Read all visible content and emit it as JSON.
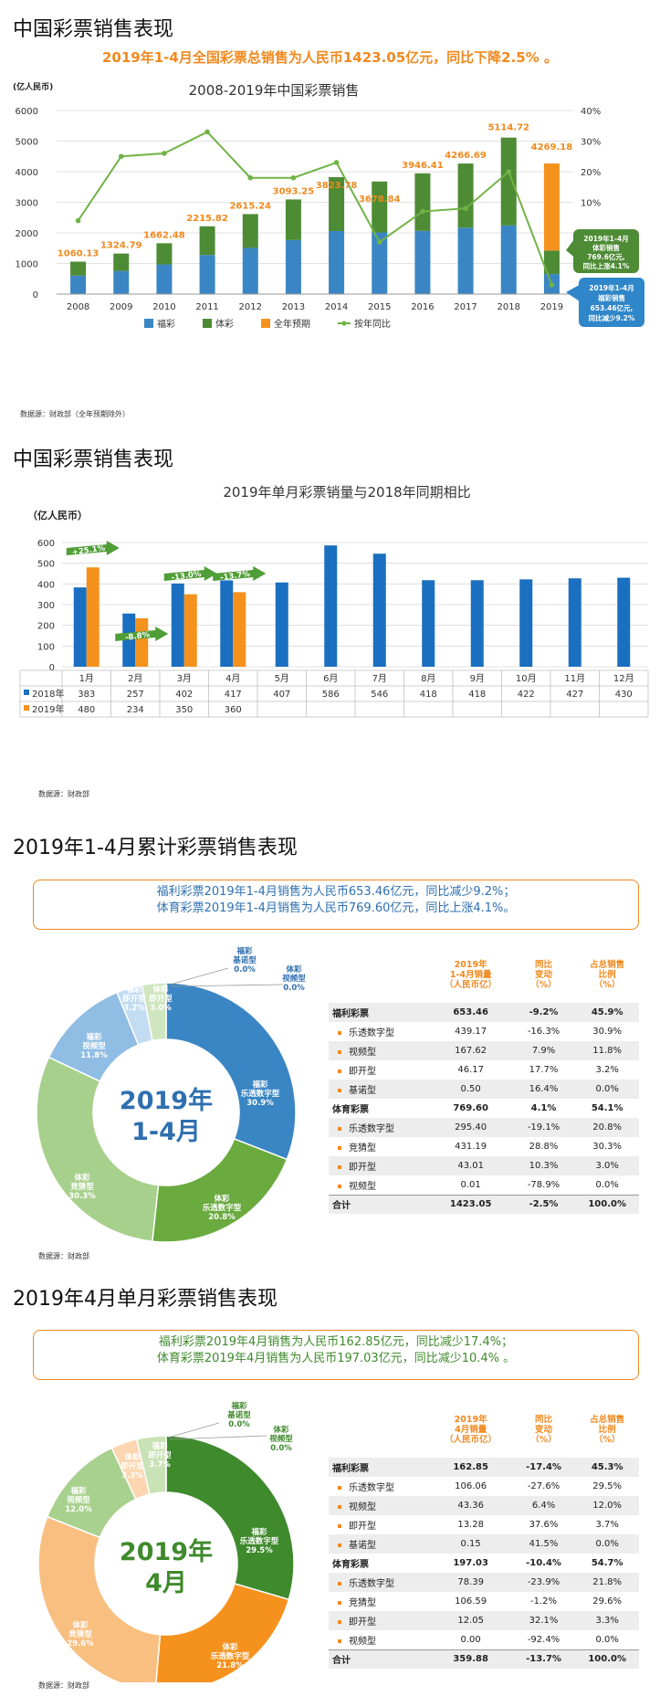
{
  "section1": {
    "title": "中国彩票销售表现",
    "headline": "2019年1-4月全国彩票总销售为人民币1423.05亿元，同比下降2.5% 。",
    "source": "数据源：财政部（全年预期除外）"
  },
  "chart1": {
    "type": "bar",
    "title": "2008-2019年中国彩票销售",
    "ylabel": "(亿人民币)",
    "categories": [
      "2008",
      "2009",
      "2010",
      "2011",
      "2012",
      "2013",
      "2014",
      "2015",
      "2016",
      "2017",
      "2018",
      "2019"
    ],
    "ylim": [
      0,
      6000
    ],
    "yticks": [
      "0",
      "1000",
      "2000",
      "3000",
      "4000",
      "5000",
      "6000"
    ],
    "y2ticks": [
      "-20%",
      "-10%",
      "0%",
      "10%",
      "20%",
      "30%",
      "40%"
    ],
    "y2lim": [
      -20,
      40
    ],
    "totals_labels": [
      "1060.13",
      "1324.79",
      "1662.48",
      "2215.82",
      "2615.24",
      "3093.25",
      "3823.78",
      "3678.84",
      "3946.41",
      "4266.69",
      "5114.72",
      "4269.18"
    ],
    "series": [
      {
        "name": "福彩",
        "color": "#3a86c4",
        "values": [
          604,
          756,
          968,
          1278,
          1510,
          1765,
          2060,
          2015,
          2065,
          2170,
          2245,
          653.46
        ]
      },
      {
        "name": "体彩",
        "color": "#4d8b34",
        "values": [
          456,
          569,
          694,
          938,
          1105,
          1328,
          1764,
          1664,
          1881,
          2097,
          2870,
          769.6
        ]
      },
      {
        "name": "全年预期",
        "color": "#f5921e",
        "values": [
          0,
          0,
          0,
          0,
          0,
          0,
          0,
          0,
          0,
          0,
          0,
          2846.12
        ]
      },
      {
        "name": "按年同比",
        "color": "#70b345",
        "axis": "right",
        "values": [
          4,
          25,
          26,
          33,
          18,
          18,
          23,
          -3,
          7,
          8,
          20,
          -17
        ]
      }
    ],
    "legend": [
      "福彩",
      "体彩",
      "全年预期",
      "按年同比"
    ],
    "callout_green": [
      "2019年1-4月",
      "体彩销售",
      "769.6亿元,",
      "同比上涨4.1%"
    ],
    "callout_blue": [
      "2019年1-4月",
      "福彩销售",
      "653.46亿元,",
      "同比减少9.2%"
    ],
    "colors": {
      "fucai": "#3a86c4",
      "ticai": "#4d8b34",
      "forecast": "#f5921e",
      "yoy": "#70b345"
    }
  },
  "section2": {
    "title": "中国彩票销售表现",
    "source": "数据源：财政部"
  },
  "chart2": {
    "type": "bar",
    "title": "2019年单月彩票销量与2018年同期相比",
    "ylabel": "（亿人民币）",
    "categories": [
      "1月",
      "2月",
      "3月",
      "4月",
      "5月",
      "6月",
      "7月",
      "8月",
      "9月",
      "10月",
      "11月",
      "12月"
    ],
    "ylim": [
      0,
      600
    ],
    "yticks": [
      "0",
      "100",
      "200",
      "300",
      "400",
      "500",
      "600"
    ],
    "series": [
      {
        "name": "2018年",
        "color": "#1a6fc0",
        "values": [
          383,
          257,
          402,
          417,
          407,
          586,
          546,
          418,
          418,
          422,
          427,
          430
        ]
      },
      {
        "name": "2019年",
        "color": "#f5921e",
        "values": [
          480,
          234,
          350,
          360,
          null,
          null,
          null,
          null,
          null,
          null,
          null,
          null
        ]
      }
    ],
    "table_rows": [
      {
        "label": "2018年",
        "values": [
          "383",
          "257",
          "402",
          "417",
          "407",
          "586",
          "546",
          "418",
          "418",
          "422",
          "427",
          "430"
        ]
      },
      {
        "label": "2019年",
        "values": [
          "480",
          "234",
          "350",
          "360",
          "",
          "",
          "",
          "",
          "",
          "",
          "",
          ""
        ]
      }
    ],
    "arrows": [
      "+25.1%",
      "-8.8%",
      "-13.0%",
      "-13.7%"
    ],
    "colors": {
      "y2018": "#1a6fc0",
      "y2019": "#f5921e",
      "arrow": "#4f9e36"
    }
  },
  "section3": {
    "title": "2019年1-4月累计彩票销售表现",
    "summary_line1": "福利彩票2019年1-4月销售为人民币653.46亿元，同比减少9.2%；",
    "summary_line2": "体育彩票2019年1-4月销售为人民币769.60亿元，同比上涨4.1%。",
    "source": "数据源：财政部",
    "donut_center_line1": "2019年",
    "donut_center_line2": "1-4月",
    "slices": [
      {
        "name": "福彩乐透数字型",
        "line1": "福彩",
        "line2": "乐透数字型",
        "pct_label": "30.9%",
        "value": 30.9,
        "color": "#3a86c4"
      },
      {
        "name": "体彩乐透数字型",
        "line1": "体彩",
        "line2": "乐透数字型",
        "pct_label": "20.8%",
        "value": 20.8,
        "color": "#6aaa3f"
      },
      {
        "name": "体彩竞猜型",
        "line1": "体彩",
        "line2": "竞猜型",
        "pct_label": "30.3%",
        "value": 30.3,
        "color": "#a8d08d"
      },
      {
        "name": "福彩视频型",
        "line1": "福彩",
        "line2": "视频型",
        "pct_label": "11.8%",
        "value": 11.8,
        "color": "#8fbde3"
      },
      {
        "name": "福彩即开型",
        "line1": "福彩",
        "line2": "即开型",
        "pct_label": "3.2%",
        "value": 3.2,
        "color": "#c3dcf1"
      },
      {
        "name": "体彩即开型",
        "line1": "体彩",
        "line2": "即开型",
        "pct_label": "3.0%",
        "value": 3.0,
        "color": "#cfe6bf"
      },
      {
        "name": "福彩基诺型",
        "line1": "福彩",
        "line2": "基诺型",
        "pct_label": "0.0%",
        "value": 0.0,
        "color": "#3a86c4"
      },
      {
        "name": "体彩视频型",
        "line1": "体彩",
        "line2": "视频型",
        "pct_label": "0.0%",
        "value": 0.0,
        "color": "#6aaa3f"
      }
    ],
    "table": {
      "headers": [
        "",
        "2019年\n1-4月销量\n（人民币亿）",
        "同比\n变动\n（%）",
        "占总销售\n比例\n（%）"
      ],
      "rows": [
        {
          "type": "group",
          "label": "福利彩票",
          "values": [
            "653.46",
            "-9.2%",
            "45.9%"
          ]
        },
        {
          "type": "item",
          "label": "乐透数字型",
          "values": [
            "439.17",
            "-16.3%",
            "30.9%"
          ]
        },
        {
          "type": "item",
          "label": "视频型",
          "values": [
            "167.62",
            "7.9%",
            "11.8%"
          ]
        },
        {
          "type": "item",
          "label": "即开型",
          "values": [
            "46.17",
            "17.7%",
            "3.2%"
          ]
        },
        {
          "type": "item",
          "label": "基诺型",
          "values": [
            "0.50",
            "16.4%",
            "0.0%"
          ]
        },
        {
          "type": "group",
          "label": "体育彩票",
          "values": [
            "769.60",
            "4.1%",
            "54.1%"
          ]
        },
        {
          "type": "item",
          "label": "乐透数字型",
          "values": [
            "295.40",
            "-19.1%",
            "20.8%"
          ]
        },
        {
          "type": "item",
          "label": "竞猜型",
          "values": [
            "431.19",
            "28.8%",
            "30.3%"
          ]
        },
        {
          "type": "item",
          "label": "即开型",
          "values": [
            "43.01",
            "10.3%",
            "3.0%"
          ]
        },
        {
          "type": "item",
          "label": "视频型",
          "values": [
            "0.01",
            "-78.9%",
            "0.0%"
          ]
        },
        {
          "type": "total",
          "label": "合计",
          "values": [
            "1423.05",
            "-2.5%",
            "100.0%"
          ]
        }
      ]
    },
    "colors": {
      "accent": "#f0891e",
      "text": "#2f6fb0",
      "center": "#2f6fb0"
    }
  },
  "section4": {
    "title": "2019年4月单月彩票销售表现",
    "summary_line1": "福利彩票2019年4月销售为人民币162.85亿元，同比减少17.4%；",
    "summary_line2": "体育彩票2019年4月销售为人民币197.03亿元，同比减少10.4% 。",
    "source": "数据源：财政部",
    "donut_center_line1": "2019年",
    "donut_center_line2": "4月",
    "slices": [
      {
        "name": "福彩乐透数字型",
        "line1": "福彩",
        "line2": "乐透数字型",
        "pct_label": "29.5%",
        "value": 29.5,
        "color": "#3f8a2c"
      },
      {
        "name": "体彩乐透数字型",
        "line1": "体彩",
        "line2": "乐透数字型",
        "pct_label": "21.8%",
        "value": 21.8,
        "color": "#f5921e"
      },
      {
        "name": "体彩竞猜型",
        "line1": "体彩",
        "line2": "竞猜型",
        "pct_label": "29.6%",
        "value": 29.6,
        "color": "#f9bf80"
      },
      {
        "name": "福彩视频型",
        "line1": "福彩",
        "line2": "视频型",
        "pct_label": "12.0%",
        "value": 12.0,
        "color": "#a9d18e"
      },
      {
        "name": "体彩即开型",
        "line1": "体彩",
        "line2": "即开型",
        "pct_label": "3.3%",
        "value": 3.3,
        "color": "#fbd6b0"
      },
      {
        "name": "福彩即开型",
        "line1": "福彩",
        "line2": "即开型",
        "pct_label": "3.7%",
        "value": 3.7,
        "color": "#c9e2b6"
      },
      {
        "name": "福彩基诺型",
        "line1": "福彩",
        "line2": "基诺型",
        "pct_label": "0.0%",
        "value": 0.0,
        "color": "#3f8a2c"
      },
      {
        "name": "体彩视频型",
        "line1": "体彩",
        "line2": "视频型",
        "pct_label": "0.0%",
        "value": 0.0,
        "color": "#f5921e"
      }
    ],
    "table": {
      "headers": [
        "",
        "2019年\n4月销量\n（人民币亿）",
        "同比\n变动\n（%）",
        "占总销售\n比例\n（%）"
      ],
      "rows": [
        {
          "type": "group",
          "label": "福利彩票",
          "values": [
            "162.85",
            "-17.4%",
            "45.3%"
          ]
        },
        {
          "type": "item",
          "label": "乐透数字型",
          "values": [
            "106.06",
            "-27.6%",
            "29.5%"
          ]
        },
        {
          "type": "item",
          "label": "视频型",
          "values": [
            "43.36",
            "6.4%",
            "12.0%"
          ]
        },
        {
          "type": "item",
          "label": "即开型",
          "values": [
            "13.28",
            "37.6%",
            "3.7%"
          ]
        },
        {
          "type": "item",
          "label": "基诺型",
          "values": [
            "0.15",
            "41.5%",
            "0.0%"
          ]
        },
        {
          "type": "group",
          "label": "体育彩票",
          "values": [
            "197.03",
            "-10.4%",
            "54.7%"
          ]
        },
        {
          "type": "item",
          "label": "乐透数字型",
          "values": [
            "78.39",
            "-23.9%",
            "21.8%"
          ]
        },
        {
          "type": "item",
          "label": "竞猜型",
          "values": [
            "106.59",
            "-1.2%",
            "29.6%"
          ]
        },
        {
          "type": "item",
          "label": "即开型",
          "values": [
            "12.05",
            "32.1%",
            "3.3%"
          ]
        },
        {
          "type": "item",
          "label": "视频型",
          "values": [
            "0.00",
            "-92.4%",
            "0.0%"
          ]
        },
        {
          "type": "total",
          "label": "合计",
          "values": [
            "359.88",
            "-13.7%",
            "100.0%"
          ]
        }
      ]
    },
    "colors": {
      "accent": "#f0891e",
      "text": "#3f8a2c",
      "center": "#3f8a2c"
    }
  }
}
